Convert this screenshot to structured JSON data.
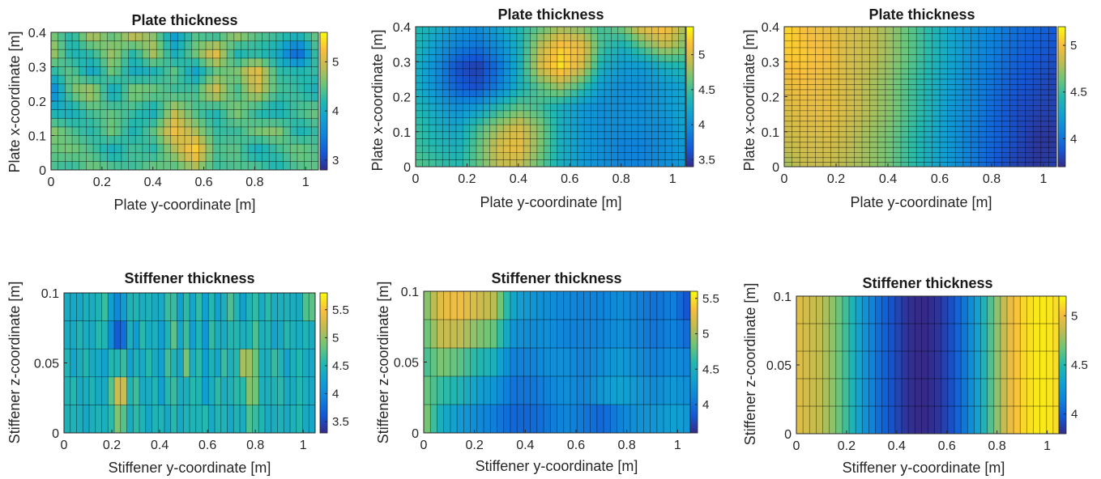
{
  "chart_data": [
    {
      "type": "heatmap",
      "title": "Plate thickness",
      "xlabel": "Plate y-coordinate [m]",
      "ylabel": "Plate x-coordinate [m]",
      "xlim": [
        0,
        1.05
      ],
      "ylim": [
        0,
        0.4
      ],
      "xticks": [
        "0",
        "0.2",
        "0.4",
        "0.6",
        "0.8",
        "1"
      ],
      "yticks": [
        "0",
        "0.1",
        "0.2",
        "0.3",
        "0.4"
      ],
      "colorbar": {
        "ticks": [
          "3",
          "4",
          "5"
        ],
        "range": [
          2.8,
          5.6
        ]
      },
      "colormap": "parula",
      "mesh": {
        "columns": 38,
        "rows": 16
      },
      "value_grid_rows_top_to_bottom": [
        [
          4.6,
          4.2,
          5.0,
          4.4,
          5.1,
          4.6,
          3.8,
          4.4,
          4.1,
          4.9,
          4.5,
          4.4,
          4.3,
          4.6
        ],
        [
          4.9,
          4.1,
          4.3,
          4.8,
          4.2,
          4.9,
          4.0,
          4.6,
          5.2,
          4.1,
          4.2,
          4.0,
          3.1,
          4.5
        ],
        [
          4.2,
          4.5,
          3.9,
          4.6,
          4.0,
          4.1,
          4.5,
          3.9,
          4.5,
          4.6,
          5.2,
          4.3,
          4.2,
          4.3
        ],
        [
          3.4,
          4.6,
          4.9,
          3.9,
          4.7,
          4.6,
          4.3,
          4.4,
          5.1,
          4.3,
          5.0,
          4.4,
          4.3,
          4.0
        ],
        [
          4.1,
          4.0,
          4.4,
          4.5,
          4.3,
          4.0,
          4.9,
          4.4,
          4.1,
          4.7,
          4.2,
          4.0,
          4.4,
          4.6
        ],
        [
          4.7,
          4.4,
          4.2,
          4.6,
          4.1,
          4.5,
          5.2,
          4.8,
          4.3,
          4.3,
          4.6,
          4.7,
          4.1,
          4.3
        ],
        [
          4.5,
          4.6,
          4.4,
          4.0,
          4.4,
          4.2,
          4.8,
          5.4,
          4.4,
          4.5,
          4.0,
          4.3,
          4.6,
          4.4
        ],
        [
          4.4,
          4.2,
          4.6,
          4.5,
          4.3,
          4.6,
          4.4,
          4.7,
          4.3,
          4.4,
          4.5,
          4.1,
          4.4,
          4.5
        ]
      ]
    },
    {
      "type": "heatmap",
      "title": "Plate thickness",
      "xlabel": "Plate y-coordinate [m]",
      "ylabel": "Plate x-coordinate [m]",
      "xlim": [
        0,
        1.05
      ],
      "ylim": [
        0,
        0.4
      ],
      "xticks": [
        "0",
        "0.2",
        "0.4",
        "0.6",
        "0.8",
        "1"
      ],
      "yticks": [
        "0",
        "0.1",
        "0.2",
        "0.3",
        "0.4"
      ],
      "colorbar": {
        "ticks": [
          "3.5",
          "4",
          "4.5",
          "5"
        ],
        "range": [
          3.4,
          5.4
        ]
      },
      "colormap": "parula",
      "mesh": {
        "columns": 40,
        "rows": 20
      },
      "value_grid_rows_top_to_bottom": [
        [
          4.4,
          4.3,
          4.1,
          4.0,
          4.2,
          4.4,
          4.6,
          4.8,
          4.7,
          4.5,
          4.7,
          5.1,
          5.2,
          4.8
        ],
        [
          4.4,
          4.1,
          3.9,
          3.8,
          4.0,
          4.3,
          4.9,
          5.2,
          5.1,
          4.5,
          4.3,
          4.6,
          4.9,
          4.7
        ],
        [
          4.3,
          4.0,
          3.6,
          3.5,
          3.8,
          4.3,
          5.0,
          5.3,
          5.0,
          4.3,
          4.1,
          4.1,
          4.3,
          4.4
        ],
        [
          4.3,
          4.0,
          3.7,
          3.6,
          3.9,
          4.3,
          4.6,
          4.8,
          4.5,
          4.1,
          4.0,
          4.0,
          4.1,
          4.2
        ],
        [
          4.4,
          4.2,
          4.0,
          4.1,
          4.4,
          4.6,
          4.5,
          4.3,
          4.1,
          4.0,
          4.0,
          4.0,
          4.1,
          4.2
        ],
        [
          4.5,
          4.3,
          4.2,
          4.5,
          4.8,
          5.0,
          4.7,
          4.3,
          4.1,
          4.0,
          4.0,
          4.0,
          4.0,
          4.2
        ],
        [
          4.5,
          4.4,
          4.3,
          4.6,
          5.0,
          5.1,
          4.7,
          4.3,
          4.1,
          4.0,
          3.9,
          3.9,
          4.0,
          4.1
        ],
        [
          4.6,
          4.5,
          4.4,
          4.6,
          4.9,
          4.9,
          4.6,
          4.3,
          4.1,
          4.0,
          3.9,
          3.9,
          4.0,
          4.1
        ]
      ]
    },
    {
      "type": "heatmap",
      "title": "Plate thickness",
      "xlabel": "Plate y-coordinate [m]",
      "ylabel": "Plate x-coordinate [m]",
      "xlim": [
        0,
        1.05
      ],
      "ylim": [
        0,
        0.4
      ],
      "xticks": [
        "0",
        "0.2",
        "0.4",
        "0.6",
        "0.8",
        "1"
      ],
      "yticks": [
        "0",
        "0.1",
        "0.2",
        "0.3",
        "0.4"
      ],
      "colorbar": {
        "ticks": [
          "4",
          "4.5",
          "5"
        ],
        "range": [
          3.7,
          5.2
        ]
      },
      "colormap": "parula",
      "mesh": {
        "column_boundaries_m": [
          0,
          0.03,
          0.06,
          0.09,
          0.12,
          0.15,
          0.18,
          0.21,
          0.24,
          0.27,
          0.3,
          0.33,
          0.36,
          0.39,
          0.42,
          0.45,
          0.48,
          0.51,
          0.54,
          0.57,
          0.6,
          0.63,
          0.66,
          0.69,
          0.72,
          0.75,
          0.78,
          0.81,
          0.84,
          0.87,
          0.9,
          0.93,
          0.96,
          0.99,
          1.02,
          1.05
        ],
        "row_boundaries_m": [
          0,
          0.013,
          0.026,
          0.04,
          0.055,
          0.07,
          0.085,
          0.1,
          0.115,
          0.13,
          0.145,
          0.16,
          0.175,
          0.19,
          0.205,
          0.22,
          0.235,
          0.25,
          0.265,
          0.28,
          0.3,
          0.32,
          0.34,
          0.36,
          0.38,
          0.4
        ]
      },
      "value_grid_rows_top_to_bottom": [
        [
          5.1,
          5.0,
          4.95,
          4.9,
          4.85,
          4.75,
          4.6,
          4.45,
          4.3,
          4.2,
          4.1,
          4.0,
          3.95,
          3.9
        ],
        [
          5.05,
          5.05,
          5.0,
          4.9,
          4.85,
          4.75,
          4.6,
          4.45,
          4.3,
          4.15,
          4.05,
          3.95,
          3.9,
          3.85
        ],
        [
          4.95,
          5.0,
          4.95,
          4.9,
          4.8,
          4.7,
          4.55,
          4.4,
          4.25,
          4.1,
          4.0,
          3.9,
          3.85,
          3.8
        ],
        [
          4.9,
          4.95,
          4.95,
          4.9,
          4.8,
          4.7,
          4.55,
          4.4,
          4.2,
          4.1,
          3.95,
          3.85,
          3.8,
          3.8
        ],
        [
          4.85,
          4.9,
          4.9,
          4.85,
          4.75,
          4.65,
          4.5,
          4.35,
          4.2,
          4.05,
          3.95,
          3.85,
          3.75,
          3.75
        ],
        [
          4.75,
          4.85,
          4.85,
          4.8,
          4.75,
          4.65,
          4.5,
          4.35,
          4.2,
          4.05,
          3.9,
          3.8,
          3.75,
          3.8
        ]
      ]
    },
    {
      "type": "heatmap",
      "title": "Stiffener thickness",
      "xlabel": "Stiffener y-coordinate [m]",
      "ylabel": "Stiffener z-coordinate [m]",
      "xlim": [
        0,
        1.05
      ],
      "ylim": [
        0,
        0.1
      ],
      "xticks": [
        "0",
        "0.2",
        "0.4",
        "0.6",
        "0.8",
        "1"
      ],
      "yticks": [
        "0",
        "0.05",
        "0.1"
      ],
      "colorbar": {
        "ticks": [
          "3.5",
          "4",
          "4.5",
          "5",
          "5.5"
        ],
        "range": [
          3.3,
          5.8
        ]
      },
      "colormap": "parula",
      "mesh": {
        "columns": 40,
        "rows": 5
      },
      "value_grid_rows_top_to_bottom": [
        [
          4.3,
          4.5,
          4.1,
          4.4,
          4.6,
          4.2,
          4.8,
          4.5,
          4.3,
          4.7,
          4.4,
          4.9,
          4.2,
          4.6,
          4.3,
          4.4,
          4.8,
          4.5,
          4.2,
          4.6,
          4.4,
          4.7,
          4.3,
          4.5,
          4.1,
          4.6,
          4.9,
          4.4,
          4.2,
          4.7,
          4.5,
          4.3,
          4.8,
          4.4,
          4.6,
          4.2,
          4.5,
          4.3,
          5.4,
          4.7
        ],
        [
          4.5,
          4.2,
          4.6,
          4.4,
          4.3,
          4.5,
          4.8,
          4.1,
          3.5,
          3.2,
          4.6,
          4.0,
          4.7,
          4.3,
          4.5,
          4.2,
          4.4,
          4.9,
          4.3,
          4.6,
          4.2,
          4.5,
          4.1,
          4.7,
          4.4,
          4.3,
          4.6,
          4.5,
          4.2,
          4.4,
          4.8,
          4.3,
          4.6,
          4.0,
          4.5,
          4.7,
          4.3,
          4.4,
          4.6,
          4.2
        ],
        [
          4.6,
          4.4,
          4.2,
          4.7,
          4.3,
          4.5,
          4.1,
          4.6,
          4.4,
          4.8,
          4.2,
          4.5,
          4.3,
          4.6,
          4.4,
          4.2,
          4.7,
          4.5,
          4.3,
          4.9,
          4.4,
          4.6,
          4.2,
          4.5,
          4.3,
          4.7,
          4.4,
          4.6,
          5.2,
          5.0,
          4.8,
          4.3,
          4.5,
          4.7,
          4.4,
          4.2,
          4.6,
          4.5,
          4.3,
          4.4
        ],
        [
          4.3,
          4.7,
          4.5,
          4.2,
          4.6,
          4.4,
          4.3,
          4.6,
          5.3,
          5.7,
          4.5,
          4.8,
          4.4,
          4.3,
          4.6,
          4.2,
          4.5,
          4.7,
          4.4,
          4.3,
          4.6,
          4.5,
          4.2,
          4.4,
          4.7,
          4.3,
          4.5,
          4.6,
          4.4,
          5.1,
          4.8,
          4.3,
          4.5,
          4.4,
          4.7,
          4.2,
          4.5,
          4.6,
          4.3,
          4.4
        ],
        [
          4.6,
          4.3,
          4.5,
          4.4,
          4.2,
          4.6,
          4.5,
          4.3,
          4.7,
          4.4,
          4.2,
          4.5,
          4.6,
          4.3,
          4.4,
          4.7,
          4.2,
          4.5,
          4.3,
          4.6,
          4.4,
          4.5,
          4.8,
          4.3,
          4.4,
          4.6,
          4.2,
          4.5,
          4.3,
          4.7,
          4.4,
          4.6,
          4.2,
          4.5,
          4.3,
          4.4,
          4.6,
          4.5,
          4.2,
          4.4
        ]
      ]
    },
    {
      "type": "heatmap",
      "title": "Stiffener thickness",
      "xlabel": "Stiffener y-coordinate [m]",
      "ylabel": "Stiffener z-coordinate [m]",
      "xlim": [
        0,
        1.05
      ],
      "ylim": [
        0,
        0.1
      ],
      "xticks": [
        "0",
        "0.2",
        "0.4",
        "0.6",
        "0.8",
        "1"
      ],
      "yticks": [
        "0",
        "0.05",
        "0.1"
      ],
      "colorbar": {
        "ticks": [
          "4",
          "4.5",
          "5",
          "5.5"
        ],
        "range": [
          3.6,
          5.6
        ]
      },
      "colormap": "parula",
      "mesh": {
        "columns": 40,
        "rows": 5
      },
      "value_grid_rows_top_to_bottom": [
        [
          4.9,
          5.3,
          5.4,
          5.3,
          5.2,
          4.5,
          4.3,
          4.2,
          4.2,
          4.1,
          4.1,
          4.2,
          4.1,
          4.0,
          4.1,
          3.7
        ],
        [
          4.8,
          5.2,
          5.2,
          5.0,
          4.9,
          4.3,
          4.2,
          4.2,
          4.1,
          4.1,
          4.1,
          4.2,
          4.1,
          4.0,
          4.1,
          3.9
        ],
        [
          4.7,
          4.9,
          4.8,
          4.6,
          4.5,
          4.1,
          4.1,
          4.2,
          4.2,
          4.1,
          4.2,
          4.3,
          4.2,
          4.1,
          4.2,
          4.1
        ],
        [
          4.9,
          4.6,
          4.5,
          4.3,
          4.2,
          4.0,
          4.0,
          4.1,
          4.2,
          4.1,
          4.3,
          4.4,
          4.3,
          4.2,
          4.3,
          4.2
        ],
        [
          5.0,
          4.4,
          4.2,
          4.1,
          4.0,
          3.9,
          3.9,
          4.0,
          4.1,
          4.0,
          3.7,
          3.9,
          4.2,
          4.3,
          4.4,
          4.3
        ]
      ]
    },
    {
      "type": "heatmap",
      "title": "Stiffener thickness",
      "xlabel": "Stiffener y-coordinate [m]",
      "ylabel": "Stiffener z-coordinate [m]",
      "xlim": [
        0,
        1.05
      ],
      "ylim": [
        0,
        0.1
      ],
      "xticks": [
        "0",
        "0.2",
        "0.4",
        "0.6",
        "0.8",
        "1"
      ],
      "yticks": [
        "0",
        "0.05",
        "0.1"
      ],
      "colorbar": {
        "ticks": [
          "4",
          "4.5",
          "5"
        ],
        "range": [
          3.8,
          5.2
        ]
      },
      "colormap": "parula",
      "mesh": {
        "columns": 40,
        "row_boundaries_m": [
          0,
          0.02,
          0.04,
          0.06,
          0.08,
          0.1
        ]
      },
      "column_profile_values": [
        4.95,
        4.9,
        4.85,
        4.75,
        4.6,
        4.4,
        4.2,
        4.05,
        3.95,
        3.85,
        3.8,
        3.8,
        3.85,
        3.95,
        4.1,
        4.3,
        4.55,
        4.8,
        5.0,
        5.1,
        5.15,
        5.15,
        5.1
      ]
    }
  ]
}
